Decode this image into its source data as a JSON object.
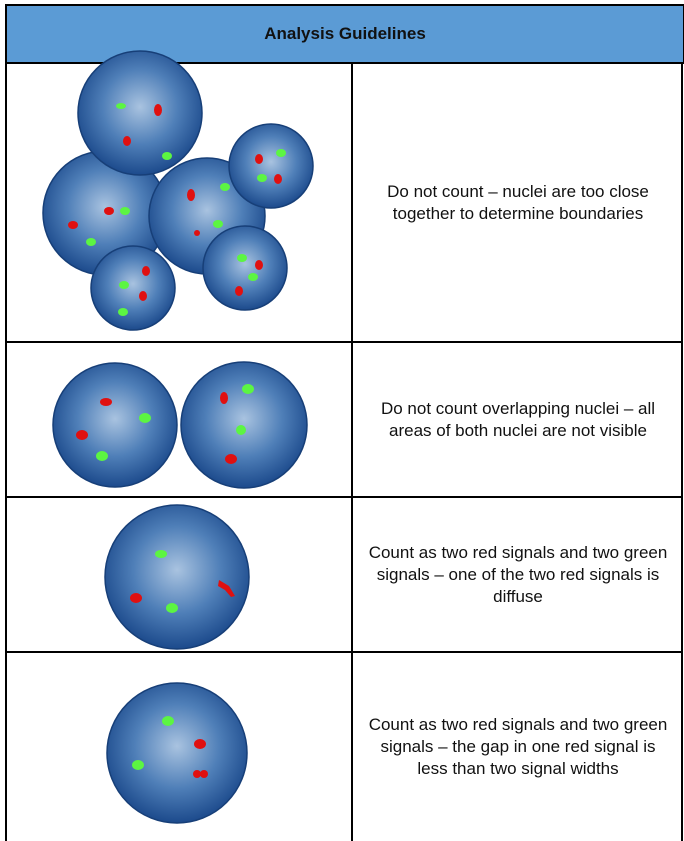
{
  "header": {
    "title": "Analysis Guidelines"
  },
  "rows": [
    {
      "description": "Do not count – nuclei are too close together to determine boundaries"
    },
    {
      "description": "Do not count overlapping nuclei – all areas of both nuclei are not visible"
    },
    {
      "description": "Count as two red signals and two green signals – one of the two red signals is diffuse"
    },
    {
      "description": "Count as two red signals and two green signals – the gap in one red signal is less than two signal widths"
    }
  ]
}
